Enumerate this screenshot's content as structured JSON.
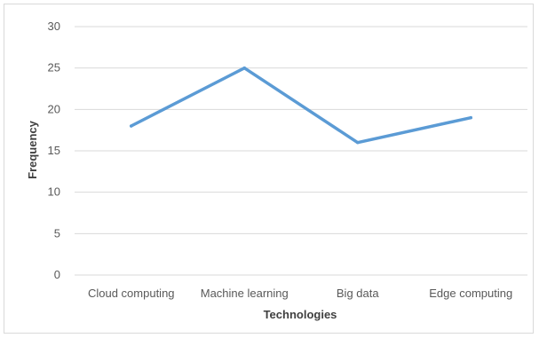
{
  "chart_data": {
    "type": "line",
    "categories": [
      "Cloud computing",
      "Machine learning",
      "Big data",
      "Edge computing"
    ],
    "series": [
      {
        "values": [
          18,
          25,
          16,
          19
        ]
      }
    ],
    "xlabel": "Technologies",
    "ylabel": "Frequency",
    "ylim": [
      0,
      30
    ],
    "yticks": [
      0,
      5,
      10,
      15,
      20,
      25,
      30
    ],
    "grid": "horizontal",
    "legend": "none",
    "line_color": "#5b9bd5"
  }
}
